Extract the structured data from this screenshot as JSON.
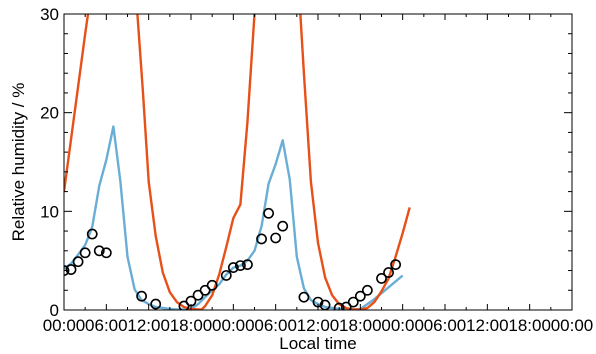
{
  "chart_data": {
    "type": "line",
    "xlabel": "Local time",
    "ylabel": "Relative humidity / %",
    "xlim": [
      0,
      72
    ],
    "ylim": [
      0,
      30
    ],
    "grid": false,
    "x_ticks": [
      {
        "value": 0,
        "label": "00:00"
      },
      {
        "value": 6,
        "label": "06:00"
      },
      {
        "value": 12,
        "label": "12:00"
      },
      {
        "value": 18,
        "label": "18:00"
      },
      {
        "value": 24,
        "label": "00:00"
      },
      {
        "value": 30,
        "label": "06:00"
      },
      {
        "value": 36,
        "label": "12:00"
      },
      {
        "value": 42,
        "label": "18:00"
      },
      {
        "value": 48,
        "label": "00:00"
      },
      {
        "value": 54,
        "label": "06:00"
      },
      {
        "value": 60,
        "label": "12:00"
      },
      {
        "value": 66,
        "label": "18:00"
      },
      {
        "value": 72,
        "label": "00:00"
      }
    ],
    "y_ticks": [
      {
        "value": 0,
        "label": "0"
      },
      {
        "value": 10,
        "label": "10"
      },
      {
        "value": 20,
        "label": "20"
      },
      {
        "value": 30,
        "label": "30"
      }
    ],
    "series": [
      {
        "style": "line",
        "color": "#6aaed6",
        "points": [
          [
            0,
            4.2
          ],
          [
            1,
            4.7
          ],
          [
            2,
            5.6
          ],
          [
            3,
            6.6
          ],
          [
            4,
            8.4
          ],
          [
            5,
            12.6
          ],
          [
            6,
            15.2
          ],
          [
            7,
            18.6
          ],
          [
            8,
            13.0
          ],
          [
            9,
            5.4
          ],
          [
            10,
            2.1
          ],
          [
            11,
            1.0
          ],
          [
            12,
            0.6
          ],
          [
            13,
            0.3
          ],
          [
            14,
            0.2
          ],
          [
            15,
            0.1
          ],
          [
            16,
            0.05
          ],
          [
            17,
            0.05
          ],
          [
            18,
            0.1
          ],
          [
            19,
            0.6
          ],
          [
            20,
            1.3
          ],
          [
            21,
            2.0
          ],
          [
            22,
            2.6
          ],
          [
            23,
            3.6
          ],
          [
            24,
            4.3
          ],
          [
            25,
            4.5
          ],
          [
            26,
            5.0
          ],
          [
            27,
            6.0
          ],
          [
            28,
            8.5
          ],
          [
            29,
            12.8
          ],
          [
            30,
            14.8
          ],
          [
            31,
            17.2
          ],
          [
            32,
            13.2
          ],
          [
            33,
            5.4
          ],
          [
            34,
            2.2
          ],
          [
            35,
            1.0
          ],
          [
            36,
            0.6
          ],
          [
            37,
            0.3
          ],
          [
            38,
            0.2
          ],
          [
            39,
            0.1
          ],
          [
            40,
            0.05
          ],
          [
            41,
            0.05
          ],
          [
            42,
            0.1
          ],
          [
            43,
            0.6
          ],
          [
            44,
            1.1
          ],
          [
            45,
            1.7
          ],
          [
            46,
            2.3
          ],
          [
            47,
            2.9
          ],
          [
            48,
            3.5
          ]
        ]
      },
      {
        "style": "line",
        "color": "#e8501a",
        "points": [
          [
            0,
            12
          ],
          [
            1.5,
            20
          ],
          [
            3,
            28
          ],
          [
            4.2,
            34
          ],
          [
            7,
            40
          ],
          [
            10,
            34
          ],
          [
            11.2,
            22
          ],
          [
            12,
            13
          ],
          [
            13,
            7.5
          ],
          [
            14,
            3.8
          ],
          [
            15,
            1.8
          ],
          [
            16,
            0.8
          ],
          [
            17,
            0.3
          ],
          [
            18,
            0.1
          ],
          [
            19,
            0.05
          ],
          [
            19.5,
            0.05
          ],
          [
            20,
            0.4
          ],
          [
            21,
            1.5
          ],
          [
            22,
            3.6
          ],
          [
            23,
            6.4
          ],
          [
            24,
            9.3
          ],
          [
            25,
            10.7
          ],
          [
            26,
            19
          ],
          [
            27,
            30
          ],
          [
            28,
            36
          ],
          [
            33,
            36
          ],
          [
            34,
            24
          ],
          [
            35,
            13
          ],
          [
            36,
            6.8
          ],
          [
            37,
            3.3
          ],
          [
            38,
            1.5
          ],
          [
            39,
            0.6
          ],
          [
            40,
            0.2
          ],
          [
            41,
            0.05
          ],
          [
            42,
            0.05
          ],
          [
            43,
            0.2
          ],
          [
            44,
            0.8
          ],
          [
            45,
            1.9
          ],
          [
            46,
            3.2
          ],
          [
            47,
            5.4
          ],
          [
            48,
            7.8
          ],
          [
            49,
            10.4
          ]
        ]
      },
      {
        "style": "markers",
        "marker": "open-circle",
        "color": "#000000",
        "points": [
          [
            0,
            4.0
          ],
          [
            1,
            4.1
          ],
          [
            2,
            4.9
          ],
          [
            3,
            5.8
          ],
          [
            4,
            7.7
          ],
          [
            5,
            6.0
          ],
          [
            6,
            5.8
          ],
          [
            11,
            1.4
          ],
          [
            13,
            0.6
          ],
          [
            17,
            0.4
          ],
          [
            18,
            0.9
          ],
          [
            19,
            1.5
          ],
          [
            20,
            2.0
          ],
          [
            21,
            2.5
          ],
          [
            23,
            3.5
          ],
          [
            24,
            4.3
          ],
          [
            25,
            4.5
          ],
          [
            26,
            4.6
          ],
          [
            28,
            7.2
          ],
          [
            29,
            9.8
          ],
          [
            30,
            7.3
          ],
          [
            31,
            8.5
          ],
          [
            34,
            1.3
          ],
          [
            36,
            0.8
          ],
          [
            37,
            0.5
          ],
          [
            39,
            0.2
          ],
          [
            40,
            0.3
          ],
          [
            41,
            0.8
          ],
          [
            42,
            1.4
          ],
          [
            43,
            2.0
          ],
          [
            45,
            3.2
          ],
          [
            46,
            3.8
          ],
          [
            47,
            4.6
          ]
        ]
      }
    ]
  }
}
